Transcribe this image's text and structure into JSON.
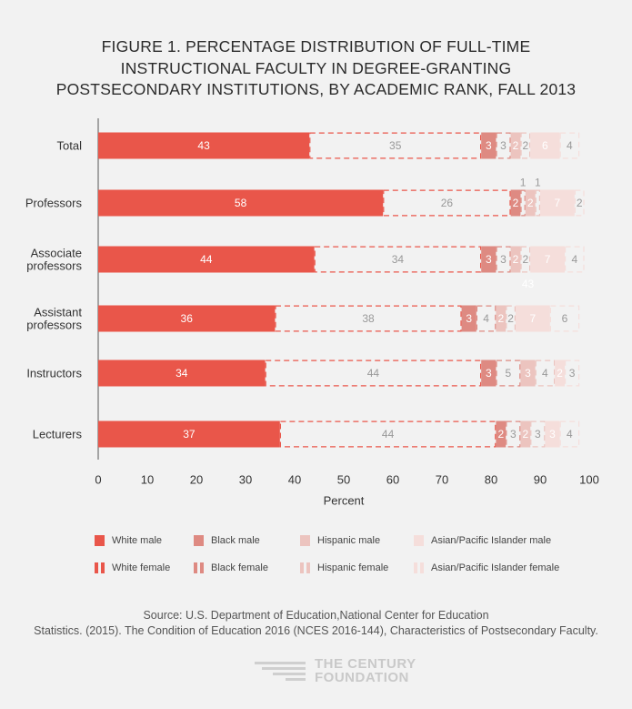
{
  "title_lines": [
    "FIGURE 1. PERCENTAGE DISTRIBUTION OF FULL-TIME",
    "INSTRUCTIONAL FACULTY IN DEGREE-GRANTING",
    "POSTSECONDARY INSTITUTIONS, BY ACADEMIC RANK, FALL 2013"
  ],
  "source_lines": [
    "Source: U.S. Department of Education,National Center for Education",
    "Statistics. (2015). The Condition of Education 2016 (NCES 2016-144), Characteristics of Postsecondary Faculty."
  ],
  "brand": {
    "line1": "THE CENTURY",
    "line2": "FOUNDATION"
  },
  "colors": {
    "white": "#e9564a",
    "black": "#de8a82",
    "hispanic": "#ecc4bf",
    "asian": "#f5dedb",
    "value_dark": "#ffffff",
    "value_light": "#999999",
    "axis": "#555555"
  },
  "chart_data": {
    "type": "bar",
    "orientation": "horizontal",
    "stacked": true,
    "title": "Percentage distribution of full-time instructional faculty in degree-granting postsecondary institutions, by academic rank, fall 2013",
    "xlabel": "Percent",
    "xlim": [
      0,
      100
    ],
    "xticks": [
      0,
      10,
      20,
      30,
      40,
      50,
      60,
      70,
      80,
      90,
      100
    ],
    "categories": [
      "Total",
      "Professors",
      "Associate professors",
      "Assistant professors",
      "Instructors",
      "Lecturers"
    ],
    "category_lines": [
      [
        "Total"
      ],
      [
        "Professors"
      ],
      [
        "Associate",
        "professors"
      ],
      [
        "Assistant",
        "professors"
      ],
      [
        "Instructors"
      ],
      [
        "Lecturers"
      ]
    ],
    "series": [
      {
        "name": "White male",
        "group": "white",
        "sex": "male",
        "values": [
          43,
          58,
          44,
          36,
          34,
          37
        ]
      },
      {
        "name": "White female",
        "group": "white",
        "sex": "female",
        "values": [
          35,
          26,
          34,
          38,
          44,
          44
        ]
      },
      {
        "name": "Black male",
        "group": "black",
        "sex": "male",
        "values": [
          3,
          2,
          3,
          3,
          3,
          2
        ]
      },
      {
        "name": "Black female",
        "group": "black",
        "sex": "female",
        "values": [
          3,
          1,
          3,
          4,
          5,
          3
        ]
      },
      {
        "name": "Hispanic male",
        "group": "hispanic",
        "sex": "male",
        "values": [
          2,
          2,
          2,
          2,
          3,
          2
        ]
      },
      {
        "name": "Hispanic female",
        "group": "hispanic",
        "sex": "female",
        "values": [
          2,
          1,
          2,
          2,
          4,
          3
        ]
      },
      {
        "name": "Asian/Pacific Islander male",
        "group": "asian",
        "sex": "male",
        "values": [
          6,
          7,
          7,
          7,
          2,
          3
        ]
      },
      {
        "name": "Asian/Pacific Islander female",
        "group": "asian",
        "sex": "female",
        "values": [
          4,
          2,
          4,
          6,
          3,
          4
        ]
      }
    ],
    "stray_label": "43",
    "legend": [
      {
        "label": "White male",
        "group": "white",
        "sex": "male"
      },
      {
        "label": "Black male",
        "group": "black",
        "sex": "male"
      },
      {
        "label": "Hispanic male",
        "group": "hispanic",
        "sex": "male"
      },
      {
        "label": "Asian/Pacific Islander male",
        "group": "asian",
        "sex": "male"
      },
      {
        "label": "White female",
        "group": "white",
        "sex": "female"
      },
      {
        "label": "Black female",
        "group": "black",
        "sex": "female"
      },
      {
        "label": "Hispanic female",
        "group": "hispanic",
        "sex": "female"
      },
      {
        "label": "Asian/Pacific Islander female",
        "group": "asian",
        "sex": "female"
      }
    ]
  }
}
